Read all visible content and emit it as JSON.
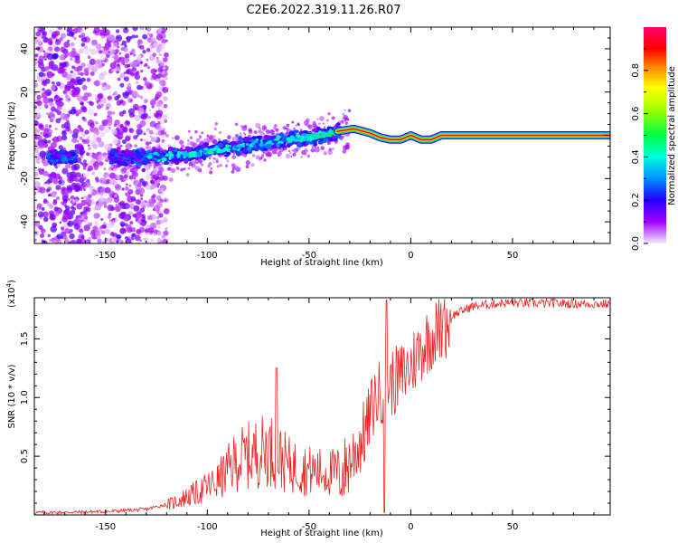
{
  "title": "C2E6.2022.319.11.26.R07",
  "spectrogram": {
    "type": "heatmap",
    "xlabel": "Height of straight line (km)",
    "ylabel": "Frequency (Hz)",
    "xlim": [
      -185,
      98
    ],
    "ylim": [
      -50,
      50
    ],
    "xticks": [
      -150,
      -100,
      -50,
      0,
      50
    ],
    "yticks": [
      -40,
      -20,
      0,
      20,
      40
    ],
    "colorbar": {
      "label": "Normalized spectral amplitude",
      "ticks": [
        "0.0",
        "0.2",
        "0.4",
        "0.6",
        "0.8"
      ],
      "tick_values": [
        0,
        0.2,
        0.4,
        0.6,
        0.8
      ],
      "range": [
        0,
        1
      ],
      "colors": [
        "#ffffff",
        "#8800ff",
        "#0000ff",
        "#00ffff",
        "#00ff00",
        "#ffff00",
        "#ff0000",
        "#ff0066"
      ]
    },
    "trend": [
      [
        -170,
        -10
      ],
      [
        -150,
        -10
      ],
      [
        -130,
        -10
      ],
      [
        -110,
        -9
      ],
      [
        -90,
        -6
      ],
      [
        -70,
        -3
      ],
      [
        -50,
        -1
      ],
      [
        -35,
        2
      ],
      [
        -28,
        3
      ],
      [
        -20,
        1
      ],
      [
        -15,
        -1
      ],
      [
        -10,
        -2
      ],
      [
        -5,
        -2
      ],
      [
        0,
        0
      ],
      [
        5,
        -2
      ],
      [
        10,
        -2
      ],
      [
        15,
        0
      ],
      [
        98,
        0
      ]
    ]
  },
  "snr": {
    "type": "line",
    "xlabel": "Height of straight line (km)",
    "ylabel": "SNR (10 * v/v)",
    "scale_label": "(x10",
    "scale_exp": "4",
    "scale_suffix": ")",
    "xlim": [
      -185,
      98
    ],
    "ylim": [
      0,
      1.85
    ],
    "xticks": [
      -150,
      -100,
      -50,
      0,
      50
    ],
    "yticks": [
      "0.5",
      "1.0",
      "1.5"
    ],
    "ytick_values": [
      0.5,
      1.0,
      1.5
    ],
    "color": "#ee2222",
    "envelope": [
      [
        -185,
        0.02
      ],
      [
        -150,
        0.03
      ],
      [
        -130,
        0.05
      ],
      [
        -118,
        0.1
      ],
      [
        -105,
        0.2
      ],
      [
        -95,
        0.3
      ],
      [
        -85,
        0.5
      ],
      [
        -70,
        0.6
      ],
      [
        -60,
        0.45
      ],
      [
        -50,
        0.4
      ],
      [
        -40,
        0.38
      ],
      [
        -33,
        0.4
      ],
      [
        -28,
        0.55
      ],
      [
        -22,
        0.75
      ],
      [
        -18,
        1.0
      ],
      [
        -14,
        1.1
      ],
      [
        -10,
        1.15
      ],
      [
        -5,
        1.2
      ],
      [
        0,
        1.3
      ],
      [
        5,
        1.45
      ],
      [
        10,
        1.55
      ],
      [
        15,
        1.62
      ],
      [
        20,
        1.7
      ],
      [
        30,
        1.78
      ],
      [
        45,
        1.81
      ],
      [
        98,
        1.8
      ]
    ],
    "peaks": [
      [
        -66,
        1.25
      ],
      [
        -12,
        1.83
      ],
      [
        -13,
        0.02
      ],
      [
        16,
        1.75
      ]
    ]
  }
}
